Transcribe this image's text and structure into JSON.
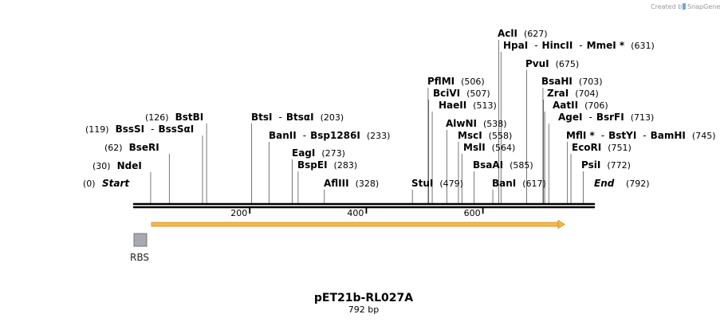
{
  "credit": {
    "prefix": "Created by",
    "brand": "SnapGene"
  },
  "plasmid": {
    "name": "pET21b-RL027A",
    "size": "792 bp",
    "length": 792
  },
  "ends": {
    "start_label": "Start",
    "start_pos": "(0)",
    "end_label": "End",
    "end_pos": "(792)"
  },
  "axis_ticks": [
    {
      "value": 200,
      "label": "200"
    },
    {
      "value": 400,
      "label": "400"
    },
    {
      "value": 600,
      "label": "600"
    }
  ],
  "features": [
    {
      "name": "RBS",
      "type": "box",
      "color": "#a6aab0",
      "start": 0,
      "end": 0
    },
    {
      "name": "",
      "type": "arrow",
      "color": "#f5b94a",
      "start": 30,
      "end": 738
    }
  ],
  "sites": [
    {
      "id": "nde",
      "side": "left",
      "pos": 30,
      "pos_text": "(30)",
      "names": [
        "NdeI"
      ]
    },
    {
      "id": "bse",
      "side": "left",
      "pos": 62,
      "pos_text": "(62)",
      "names": [
        "BseRI"
      ]
    },
    {
      "id": "bss",
      "side": "left",
      "pos": 119,
      "pos_text": "(119)",
      "names": [
        "BssSI",
        "BssSαI"
      ]
    },
    {
      "id": "bst",
      "side": "left",
      "pos": 126,
      "pos_text": "(126)",
      "names": [
        "BstBI"
      ]
    },
    {
      "id": "bts",
      "side": "right",
      "pos": 203,
      "pos_text": "(203)",
      "names": [
        "BtsI",
        "BtsαI"
      ]
    },
    {
      "id": "ban2",
      "side": "right",
      "pos": 233,
      "pos_text": "(233)",
      "names": [
        "BanII",
        "Bsp1286I"
      ]
    },
    {
      "id": "eag",
      "side": "right",
      "pos": 273,
      "pos_text": "(273)",
      "names": [
        "EagI"
      ]
    },
    {
      "id": "bsp",
      "side": "right",
      "pos": 283,
      "pos_text": "(283)",
      "names": [
        "BspEI"
      ]
    },
    {
      "id": "afl",
      "side": "right",
      "pos": 328,
      "pos_text": "(328)",
      "names": [
        "AflIII"
      ]
    },
    {
      "id": "stu",
      "side": "right",
      "pos": 479,
      "pos_text": "(479)",
      "names": [
        "StuI"
      ]
    },
    {
      "id": "pfl",
      "side": "right",
      "pos": 506,
      "pos_text": "(506)",
      "names": [
        "PflMI"
      ]
    },
    {
      "id": "bci",
      "side": "right",
      "pos": 507,
      "pos_text": "(507)",
      "names": [
        "BciVI"
      ]
    },
    {
      "id": "hae",
      "side": "right",
      "pos": 513,
      "pos_text": "(513)",
      "names": [
        "HaeII"
      ]
    },
    {
      "id": "alw",
      "side": "right",
      "pos": 538,
      "pos_text": "(538)",
      "names": [
        "AlwNI"
      ]
    },
    {
      "id": "msc",
      "side": "right",
      "pos": 558,
      "pos_text": "(558)",
      "names": [
        "MscI"
      ]
    },
    {
      "id": "msl",
      "side": "right",
      "pos": 564,
      "pos_text": "(564)",
      "names": [
        "MslI"
      ]
    },
    {
      "id": "bsaa",
      "side": "right",
      "pos": 585,
      "pos_text": "(585)",
      "names": [
        "BsaAI"
      ]
    },
    {
      "id": "bani",
      "side": "right",
      "pos": 617,
      "pos_text": "(617)",
      "names": [
        "BanI"
      ]
    },
    {
      "id": "acl",
      "side": "right",
      "pos": 627,
      "pos_text": "(627)",
      "names": [
        "AclI"
      ]
    },
    {
      "id": "hpa",
      "side": "right",
      "pos": 631,
      "pos_text": "(631)",
      "names": [
        "HpaI",
        "HincII",
        "MmeI *"
      ]
    },
    {
      "id": "pvu",
      "side": "right",
      "pos": 675,
      "pos_text": "(675)",
      "names": [
        "PvuI"
      ]
    },
    {
      "id": "bsah",
      "side": "right",
      "pos": 703,
      "pos_text": "(703)",
      "names": [
        "BsaHI"
      ]
    },
    {
      "id": "zra",
      "side": "right",
      "pos": 704,
      "pos_text": "(704)",
      "names": [
        "ZraI"
      ]
    },
    {
      "id": "aat",
      "side": "right",
      "pos": 706,
      "pos_text": "(706)",
      "names": [
        "AatII"
      ]
    },
    {
      "id": "age",
      "side": "right",
      "pos": 713,
      "pos_text": "(713)",
      "names": [
        "AgeI",
        "BsrFI"
      ]
    },
    {
      "id": "mfl",
      "side": "right",
      "pos": 745,
      "pos_text": "(745)",
      "names": [
        "MflI *",
        "BstYI",
        "BamHI"
      ]
    },
    {
      "id": "eco",
      "side": "right",
      "pos": 751,
      "pos_text": "(751)",
      "names": [
        "EcoRI"
      ]
    },
    {
      "id": "psi",
      "side": "right",
      "pos": 772,
      "pos_text": "(772)",
      "names": [
        "PsiI"
      ]
    }
  ]
}
